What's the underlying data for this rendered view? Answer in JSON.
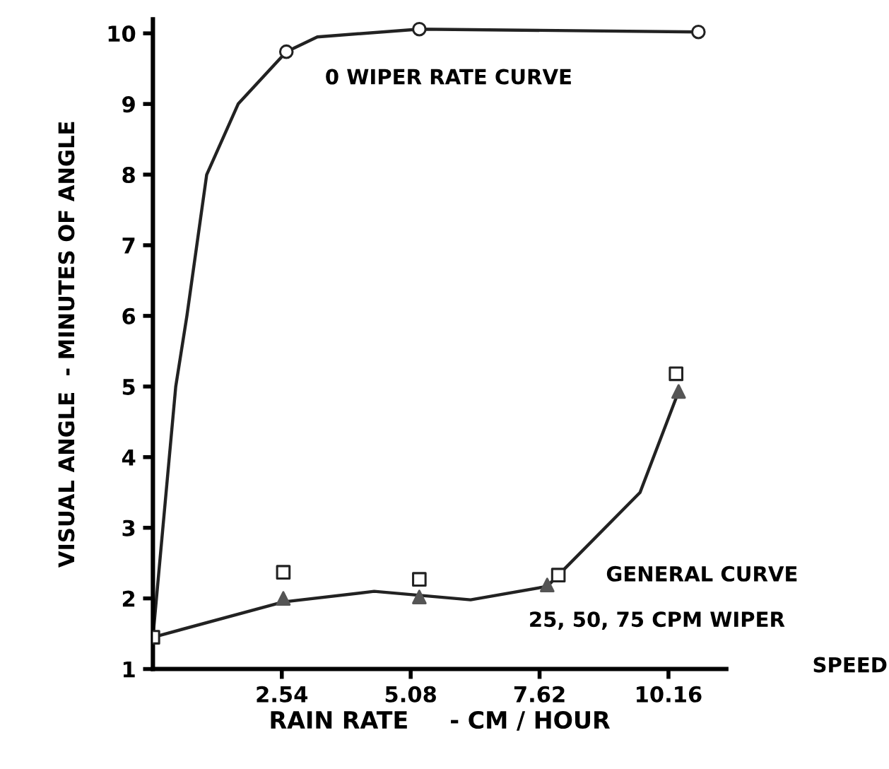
{
  "chart_data": {
    "type": "line",
    "xlabel": "RAIN RATE     - CM / HOUR",
    "ylabel": "VISUAL ANGLE  - MINUTES OF ANGLE",
    "xlim": [
      0,
      11.3
    ],
    "ylim": [
      1,
      10.2
    ],
    "xticks": [
      2.54,
      5.08,
      7.62,
      10.16
    ],
    "yticks": [
      1,
      2,
      3,
      4,
      5,
      6,
      7,
      8,
      9,
      10
    ],
    "grid": false,
    "legend": false,
    "series": [
      {
        "color": "#222222",
        "marker": "none",
        "x": [
          0,
          0.45,
          0.67,
          1.06,
          1.68,
          2.63,
          3.24,
          5.25,
          10.75
        ],
        "values": [
          1.45,
          5,
          6,
          8,
          9,
          9.74,
          9.95,
          10.06,
          10.02
        ]
      },
      {
        "type": "scatter",
        "color": "#222222",
        "marker": "circle",
        "x": [
          2.63,
          5.25,
          10.75
        ],
        "values": [
          9.74,
          10.06,
          10.02
        ]
      },
      {
        "color": "#222222",
        "marker": "none",
        "x": [
          0,
          2.57,
          4.36,
          6.26,
          7.77,
          9.6,
          10.36
        ],
        "values": [
          1.45,
          1.95,
          2.1,
          1.98,
          2.17,
          3.5,
          4.93
        ]
      },
      {
        "type": "scatter",
        "color": "#555555",
        "marker": "triangle",
        "x": [
          2.57,
          5.25,
          7.77,
          10.36
        ],
        "values": [
          2.0,
          2.02,
          2.19,
          4.93
        ]
      },
      {
        "type": "scatter",
        "color": "#222222",
        "marker": "square",
        "x": [
          0,
          2.57,
          5.25,
          7.99,
          10.31
        ],
        "values": [
          1.45,
          2.37,
          2.27,
          2.33,
          5.18
        ]
      }
    ],
    "annotations": [
      "0 WIPER RATE CURVE",
      "GENERAL CURVE",
      "25, 50, 75 CPM WIPER",
      "SPEED"
    ]
  }
}
